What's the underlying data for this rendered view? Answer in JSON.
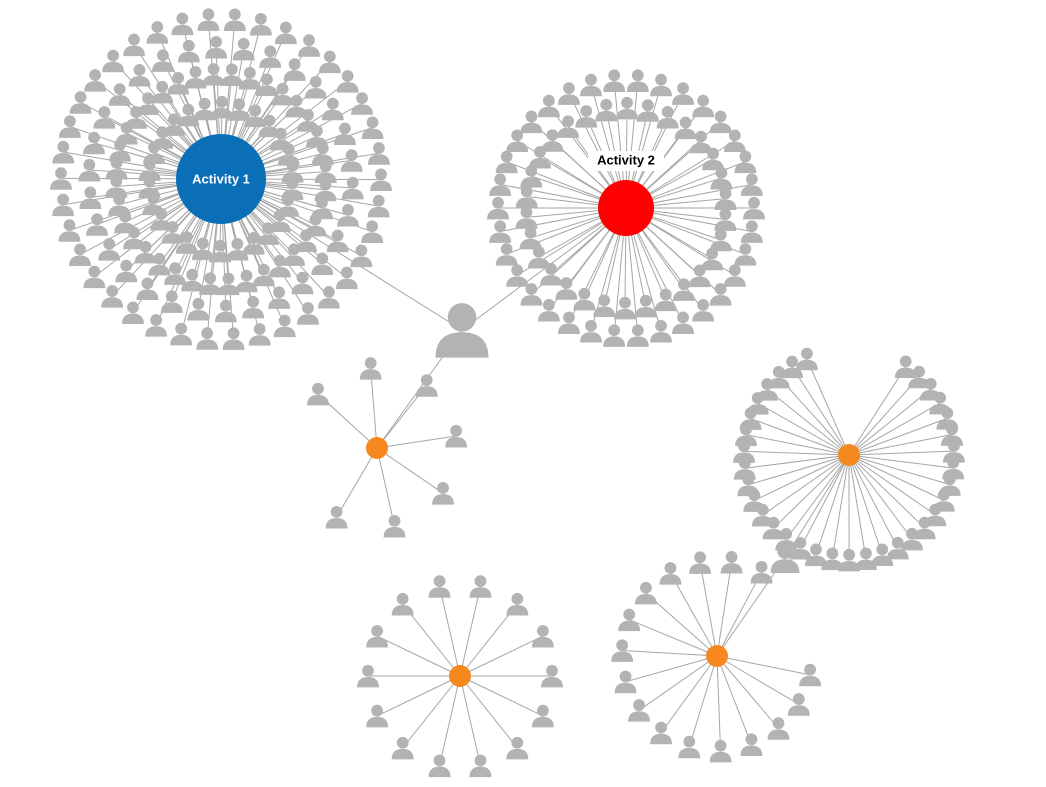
{
  "graph": {
    "hubs": [
      {
        "id": "activity-1",
        "label": "Activity 1",
        "color": "#0b6fb8",
        "kind": "activity",
        "people": 130,
        "label_inside": true
      },
      {
        "id": "activity-2",
        "label": "Activity 2",
        "color": "#ff0000",
        "kind": "activity",
        "people": 64,
        "label_inside": false
      },
      {
        "id": "group-a",
        "label": "",
        "color": "#f5891f",
        "kind": "group",
        "people": 7
      },
      {
        "id": "group-b",
        "label": "",
        "color": "#f5891f",
        "kind": "group",
        "people": 14
      },
      {
        "id": "group-c",
        "label": "",
        "color": "#f5891f",
        "kind": "group",
        "people": 16
      },
      {
        "id": "group-d",
        "label": "",
        "color": "#f5891f",
        "kind": "group",
        "people": 34
      }
    ],
    "connectors": [
      {
        "id": "central-person",
        "links": [
          "activity-1",
          "activity-2",
          "group-a"
        ]
      },
      {
        "id": "bridge-person",
        "links": [
          "group-c",
          "group-d"
        ]
      }
    ],
    "colors": {
      "person": "#b3b3b3",
      "edge": "#a6a6a6",
      "background": "#ffffff"
    },
    "node_icon": "person-icon"
  }
}
